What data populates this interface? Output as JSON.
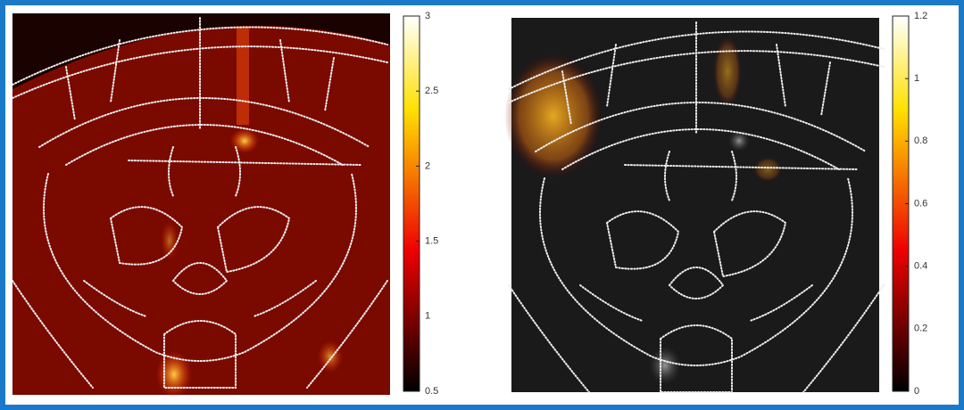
{
  "chart_data": [
    {
      "type": "image",
      "colormap": "hot",
      "clim": [
        0.5,
        3
      ],
      "cticks": [
        0.5,
        1,
        1.5,
        2,
        2.5,
        3
      ]
    },
    {
      "type": "image",
      "colormap": "hot",
      "clim": [
        0,
        1.2
      ],
      "cticks": [
        0,
        0.2,
        0.4,
        0.6,
        0.8,
        1,
        1.2
      ]
    }
  ]
}
